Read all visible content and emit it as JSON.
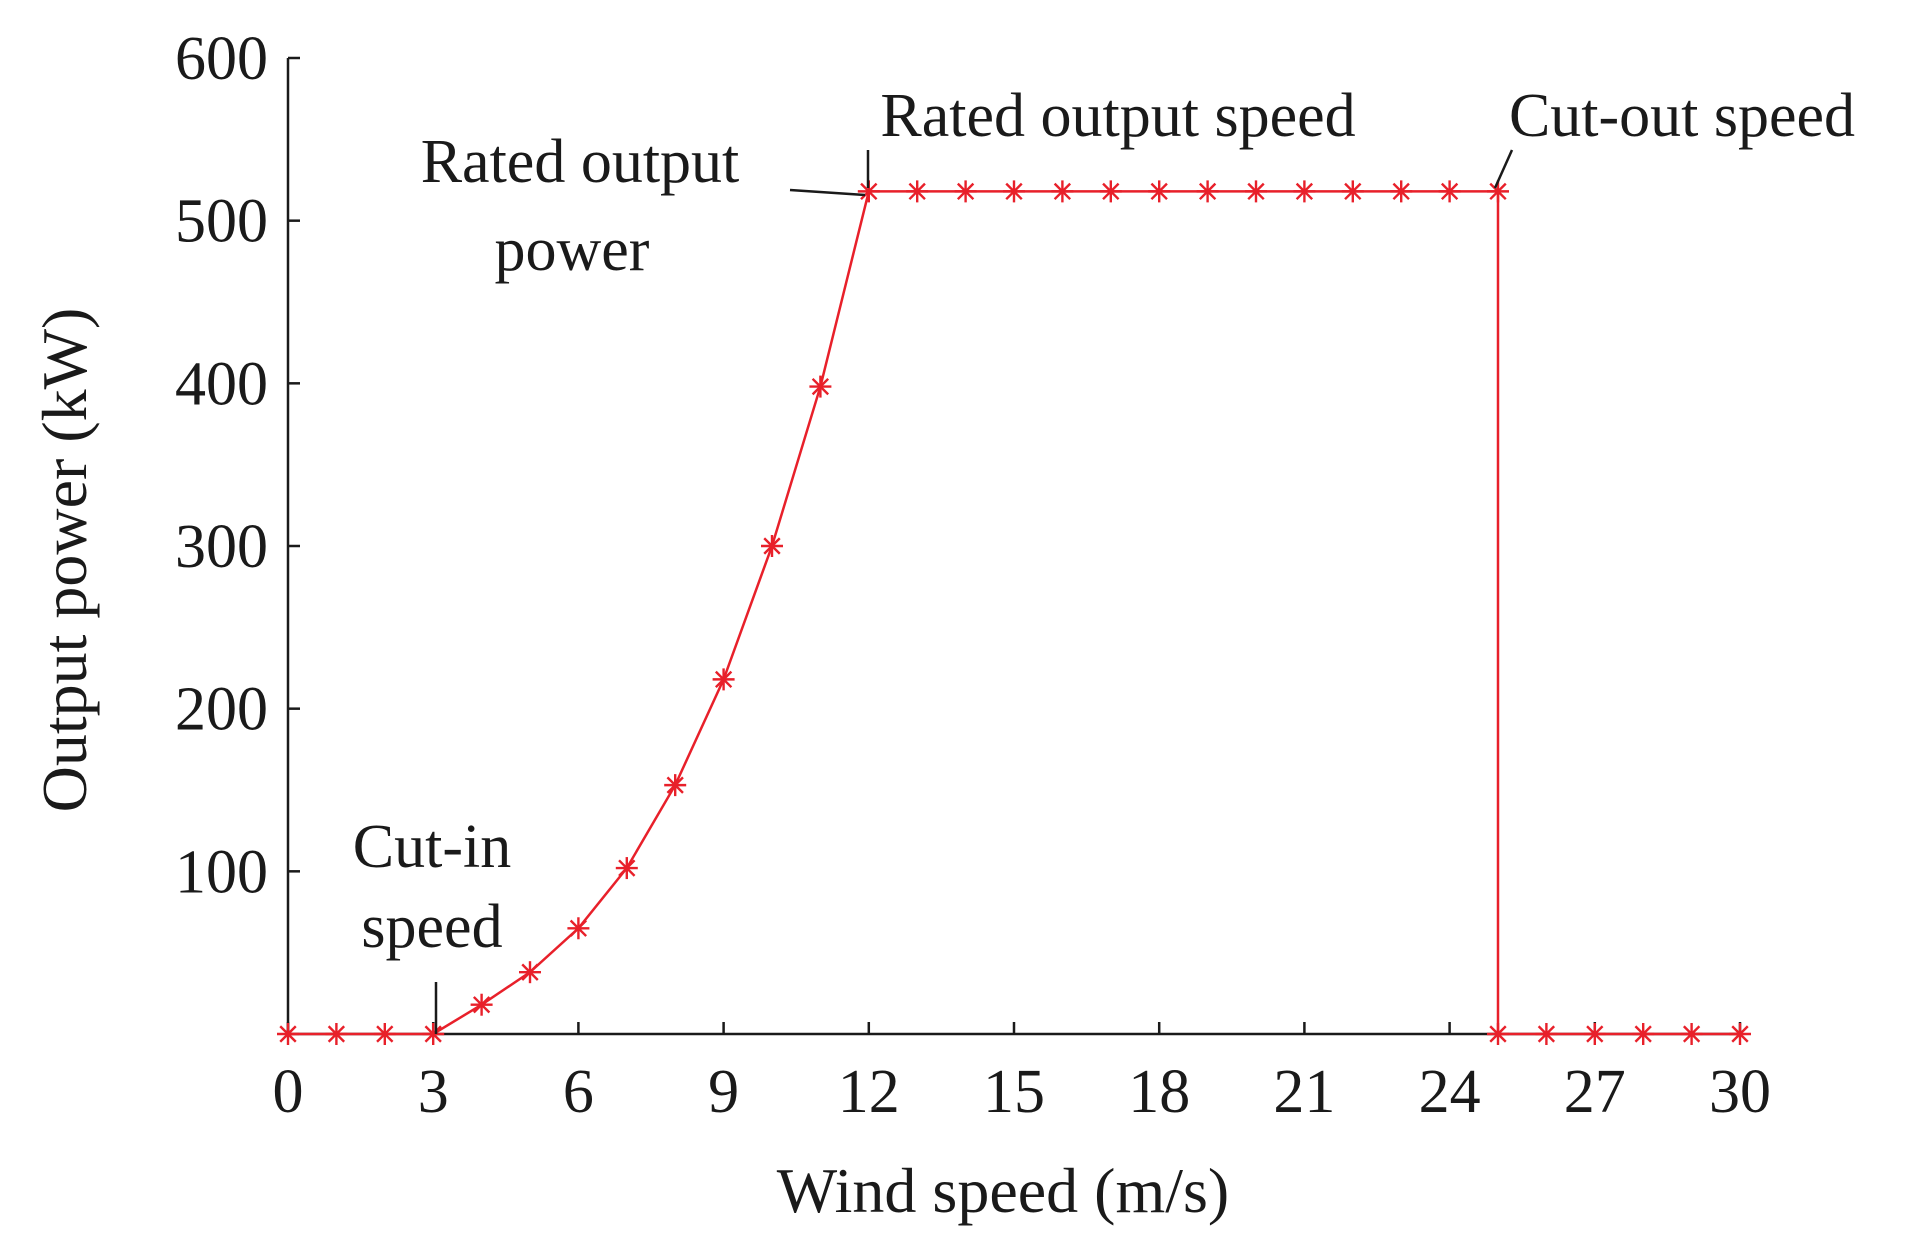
{
  "chart_data": {
    "type": "line",
    "title": "",
    "xlabel": "Wind speed (m/s)",
    "ylabel": "Output power (kW)",
    "xlim": [
      0,
      30
    ],
    "ylim": [
      0,
      600
    ],
    "xticks": [
      0,
      3,
      6,
      9,
      12,
      15,
      18,
      21,
      24,
      27,
      30
    ],
    "yticks": [
      100,
      200,
      300,
      400,
      500,
      600
    ],
    "grid": false,
    "line_color": "#e8202a",
    "marker": "asterisk",
    "series": [
      {
        "name": "Output power",
        "x": [
          0,
          1,
          2,
          3,
          4,
          5,
          6,
          7,
          8,
          9,
          10,
          11,
          12,
          13,
          14,
          15,
          16,
          17,
          18,
          19,
          20,
          21,
          22,
          23,
          24,
          25,
          25,
          26,
          27,
          28,
          29,
          30
        ],
        "y": [
          0,
          0,
          0,
          0,
          18,
          38,
          65,
          102,
          153,
          218,
          300,
          398,
          518,
          518,
          518,
          518,
          518,
          518,
          518,
          518,
          518,
          518,
          518,
          518,
          518,
          518,
          0,
          0,
          0,
          0,
          0,
          0
        ]
      }
    ],
    "annotations": [
      {
        "lines": [
          "Cut-in",
          "speed"
        ],
        "x": 3,
        "y": 0
      },
      {
        "lines": [
          "Rated output",
          "power"
        ],
        "x": 12,
        "y": 518
      },
      {
        "lines": [
          "Rated output speed"
        ],
        "x": 12,
        "y": 518
      },
      {
        "lines": [
          "Cut-out speed"
        ],
        "x": 25,
        "y": 518
      }
    ]
  }
}
